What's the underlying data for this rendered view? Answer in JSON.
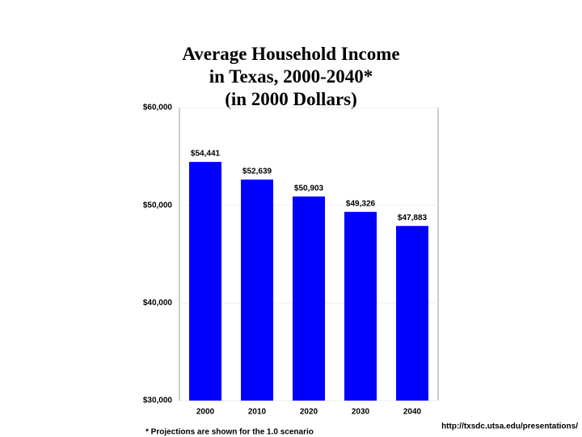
{
  "chart_data": {
    "type": "bar",
    "title": [
      "Average Household Income",
      "in Texas, 2000-2040*",
      "(in 2000 Dollars)"
    ],
    "categories": [
      "2000",
      "2010",
      "2020",
      "2030",
      "2040"
    ],
    "values": [
      54441,
      52639,
      50903,
      49326,
      47883
    ],
    "value_labels": [
      "$54,441",
      "$52,639",
      "$50,903",
      "$49,326",
      "$47,883"
    ],
    "color": "#0000ff",
    "ylim": [
      30000,
      60000
    ],
    "yticks": [
      {
        "value": 30000,
        "label": "$30,000"
      },
      {
        "value": 40000,
        "label": "$40,000"
      },
      {
        "value": 50000,
        "label": "$50,000"
      },
      {
        "value": 60000,
        "label": "$60,000"
      }
    ],
    "grid": true,
    "footnote": "* Projections are shown for the 1.0 scenario",
    "source": "http://txsdc.utsa.edu/presentations/"
  }
}
